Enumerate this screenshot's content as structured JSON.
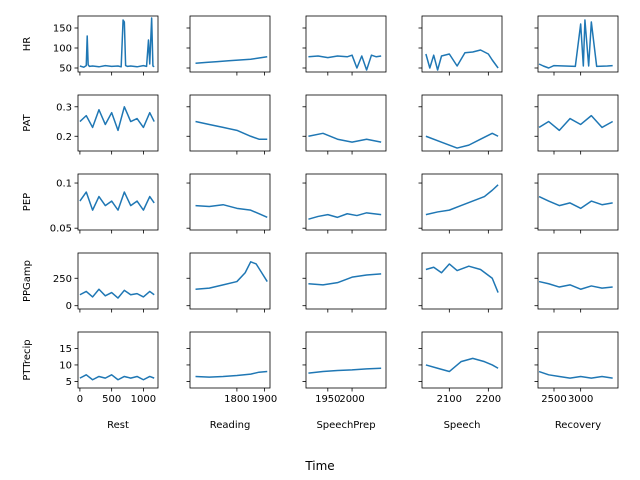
{
  "chart_data": {
    "type": "line",
    "supxlabel": "Time",
    "line_color": "#1f77b4",
    "rows": [
      {
        "ylabel": "HR",
        "ylim": [
          40,
          180
        ],
        "yticks": [
          50,
          100,
          150
        ]
      },
      {
        "ylabel": "PAT",
        "ylim": [
          0.15,
          0.34
        ],
        "yticks": [
          0.2,
          0.3
        ]
      },
      {
        "ylabel": "PEP",
        "ylim": [
          0.048,
          0.11
        ],
        "yticks": [
          0.05,
          0.1
        ]
      },
      {
        "ylabel": "PPGamp",
        "ylim": [
          -30,
          480
        ],
        "yticks": [
          0,
          250
        ]
      },
      {
        "ylabel": "PTTrecip",
        "ylim": [
          3,
          20
        ],
        "yticks": [
          5,
          10,
          15
        ]
      }
    ],
    "columns": [
      {
        "xlabel": "Rest",
        "xlim": [
          -30,
          1230
        ],
        "xticks": [
          0,
          500,
          1000
        ]
      },
      {
        "xlabel": "Reading",
        "xlim": [
          1630,
          1920
        ],
        "xticks": [
          1800,
          1900
        ]
      },
      {
        "xlabel": "SpeechPrep",
        "xlim": [
          1905,
          2070
        ],
        "xticks": [
          1950,
          2000
        ]
      },
      {
        "xlabel": "Speech",
        "xlim": [
          2030,
          2235
        ],
        "xticks": [
          2100,
          2200
        ]
      },
      {
        "xlabel": "Recovery",
        "xlim": [
          2200,
          3700
        ],
        "xticks": [
          2500,
          3000
        ]
      }
    ],
    "series": [
      [
        {
          "name": "",
          "x": [
            0,
            60,
            100,
            115,
            130,
            150,
            200,
            300,
            400,
            500,
            600,
            650,
            680,
            700,
            720,
            750,
            800,
            900,
            1000,
            1050,
            1080,
            1100,
            1130,
            1150,
            1170
          ],
          "y": [
            55,
            52,
            56,
            130,
            58,
            54,
            55,
            53,
            56,
            54,
            55,
            53,
            170,
            165,
            56,
            54,
            55,
            53,
            56,
            54,
            120,
            60,
            175,
            55,
            53
          ]
        },
        {
          "name": "",
          "x": [
            1650,
            1690,
            1730,
            1770,
            1810,
            1850,
            1880,
            1910
          ],
          "y": [
            62,
            64,
            66,
            68,
            70,
            72,
            75,
            78
          ]
        },
        {
          "name": "",
          "x": [
            1910,
            1930,
            1950,
            1970,
            1990,
            2000,
            2010,
            2020,
            2030,
            2040,
            2050,
            2060
          ],
          "y": [
            78,
            80,
            76,
            80,
            78,
            82,
            50,
            80,
            45,
            82,
            78,
            80
          ]
        },
        {
          "name": "",
          "x": [
            2040,
            2050,
            2060,
            2070,
            2080,
            2100,
            2120,
            2140,
            2160,
            2180,
            2200,
            2210,
            2225
          ],
          "y": [
            85,
            50,
            82,
            45,
            80,
            85,
            55,
            88,
            90,
            95,
            85,
            70,
            50
          ]
        },
        {
          "name": "",
          "x": [
            2220,
            2300,
            2400,
            2500,
            2700,
            2900,
            3000,
            3050,
            3080,
            3150,
            3200,
            3300,
            3500,
            3600
          ],
          "y": [
            60,
            55,
            50,
            56,
            55,
            54,
            160,
            55,
            170,
            55,
            165,
            54,
            55,
            56
          ]
        }
      ],
      [
        {
          "name": "",
          "x": [
            0,
            100,
            200,
            300,
            400,
            500,
            600,
            700,
            800,
            900,
            1000,
            1100,
            1170
          ],
          "y": [
            0.25,
            0.27,
            0.23,
            0.29,
            0.24,
            0.28,
            0.22,
            0.3,
            0.25,
            0.26,
            0.23,
            0.28,
            0.25
          ]
        },
        {
          "name": "",
          "x": [
            1650,
            1700,
            1750,
            1800,
            1850,
            1880,
            1910
          ],
          "y": [
            0.25,
            0.24,
            0.23,
            0.22,
            0.2,
            0.19,
            0.19
          ]
        },
        {
          "name": "",
          "x": [
            1910,
            1940,
            1970,
            2000,
            2030,
            2060
          ],
          "y": [
            0.2,
            0.21,
            0.19,
            0.18,
            0.19,
            0.18
          ]
        },
        {
          "name": "",
          "x": [
            2040,
            2080,
            2120,
            2150,
            2180,
            2210,
            2225
          ],
          "y": [
            0.2,
            0.18,
            0.16,
            0.17,
            0.19,
            0.21,
            0.2
          ]
        },
        {
          "name": "",
          "x": [
            2220,
            2400,
            2600,
            2800,
            3000,
            3200,
            3400,
            3600
          ],
          "y": [
            0.23,
            0.25,
            0.22,
            0.26,
            0.24,
            0.27,
            0.23,
            0.25
          ]
        }
      ],
      [
        {
          "name": "",
          "x": [
            0,
            100,
            200,
            300,
            400,
            500,
            600,
            700,
            800,
            900,
            1000,
            1100,
            1170
          ],
          "y": [
            0.08,
            0.09,
            0.07,
            0.085,
            0.075,
            0.08,
            0.07,
            0.09,
            0.075,
            0.08,
            0.07,
            0.085,
            0.078
          ]
        },
        {
          "name": "",
          "x": [
            1650,
            1700,
            1750,
            1800,
            1850,
            1880,
            1910
          ],
          "y": [
            0.075,
            0.074,
            0.076,
            0.072,
            0.07,
            0.066,
            0.062
          ]
        },
        {
          "name": "",
          "x": [
            1910,
            1930,
            1950,
            1970,
            1990,
            2010,
            2030,
            2060
          ],
          "y": [
            0.06,
            0.063,
            0.065,
            0.062,
            0.066,
            0.064,
            0.067,
            0.065
          ]
        },
        {
          "name": "",
          "x": [
            2040,
            2070,
            2100,
            2130,
            2160,
            2190,
            2210,
            2225
          ],
          "y": [
            0.065,
            0.068,
            0.07,
            0.075,
            0.08,
            0.085,
            0.092,
            0.098
          ]
        },
        {
          "name": "",
          "x": [
            2220,
            2400,
            2600,
            2800,
            3000,
            3200,
            3400,
            3600
          ],
          "y": [
            0.085,
            0.08,
            0.075,
            0.078,
            0.072,
            0.08,
            0.076,
            0.078
          ]
        }
      ],
      [
        {
          "name": "",
          "x": [
            0,
            100,
            200,
            300,
            400,
            500,
            600,
            700,
            800,
            900,
            1000,
            1100,
            1170
          ],
          "y": [
            100,
            130,
            80,
            150,
            90,
            120,
            70,
            140,
            100,
            110,
            80,
            130,
            100
          ]
        },
        {
          "name": "",
          "x": [
            1650,
            1700,
            1750,
            1800,
            1830,
            1850,
            1870,
            1890,
            1910
          ],
          "y": [
            150,
            160,
            190,
            220,
            300,
            400,
            380,
            300,
            220
          ]
        },
        {
          "name": "",
          "x": [
            1910,
            1940,
            1970,
            2000,
            2030,
            2060
          ],
          "y": [
            200,
            190,
            210,
            260,
            280,
            290
          ]
        },
        {
          "name": "",
          "x": [
            2040,
            2060,
            2080,
            2100,
            2120,
            2150,
            2180,
            2210,
            2225
          ],
          "y": [
            330,
            350,
            300,
            380,
            320,
            360,
            330,
            250,
            120
          ]
        },
        {
          "name": "",
          "x": [
            2220,
            2400,
            2600,
            2800,
            3000,
            3200,
            3400,
            3600
          ],
          "y": [
            220,
            200,
            170,
            190,
            150,
            180,
            160,
            170
          ]
        }
      ],
      [
        {
          "name": "",
          "x": [
            0,
            100,
            200,
            300,
            400,
            500,
            600,
            700,
            800,
            900,
            1000,
            1100,
            1170
          ],
          "y": [
            6,
            7,
            5.5,
            6.5,
            6,
            7,
            5.5,
            6.5,
            6,
            6.5,
            5.5,
            6.5,
            6
          ]
        },
        {
          "name": "",
          "x": [
            1650,
            1700,
            1750,
            1800,
            1850,
            1880,
            1910
          ],
          "y": [
            6.5,
            6.3,
            6.5,
            6.8,
            7.2,
            7.8,
            8.0
          ]
        },
        {
          "name": "",
          "x": [
            1910,
            1940,
            1970,
            2000,
            2030,
            2060
          ],
          "y": [
            7.5,
            8.0,
            8.3,
            8.5,
            8.8,
            9.0
          ]
        },
        {
          "name": "",
          "x": [
            2040,
            2070,
            2100,
            2130,
            2160,
            2190,
            2210,
            2225
          ],
          "y": [
            10,
            9,
            8,
            11,
            12,
            11,
            10,
            9
          ]
        },
        {
          "name": "",
          "x": [
            2220,
            2400,
            2600,
            2800,
            3000,
            3200,
            3400,
            3600
          ],
          "y": [
            8,
            7,
            6.5,
            6,
            6.5,
            6,
            6.5,
            6
          ]
        }
      ]
    ]
  }
}
